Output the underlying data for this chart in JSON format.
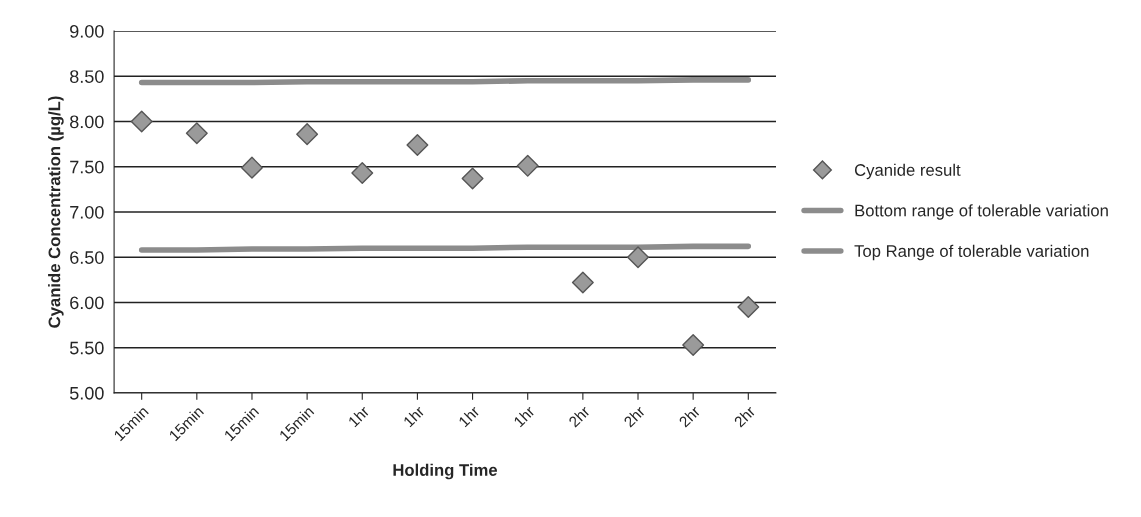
{
  "chart_data": {
    "type": "scatter",
    "xlabel": "Holding Time",
    "ylabel": "Cyanide Concentration (µg/L)",
    "categories": [
      "15min",
      "15min",
      "15min",
      "15min",
      "1hr",
      "1hr",
      "1hr",
      "1hr",
      "2hr",
      "2hr",
      "2hr",
      "2hr"
    ],
    "series": [
      {
        "name": "Cyanide result",
        "color": "#9a9a9a",
        "marker": "diamond",
        "values": [
          8.0,
          7.87,
          7.49,
          7.86,
          7.43,
          7.74,
          7.37,
          7.51,
          6.22,
          6.5,
          5.53,
          5.95
        ]
      },
      {
        "name": "Bottom range of tolerable variation",
        "type": "line",
        "color": "#8c8c8c",
        "marker": "none",
        "values": [
          6.58,
          6.58,
          6.59,
          6.59,
          6.6,
          6.6,
          6.6,
          6.61,
          6.61,
          6.61,
          6.62,
          6.62
        ]
      },
      {
        "name": "Top Range of tolerable variation",
        "type": "line",
        "color": "#8c8c8c",
        "marker": "none",
        "values": [
          8.43,
          8.43,
          8.43,
          8.44,
          8.44,
          8.44,
          8.44,
          8.45,
          8.45,
          8.45,
          8.46,
          8.46
        ]
      }
    ],
    "ylim": [
      5.0,
      9.0
    ],
    "yticks": [
      {
        "value": 5.0,
        "label": "5.00"
      },
      {
        "value": 5.5,
        "label": "5.50"
      },
      {
        "value": 6.0,
        "label": "6.00"
      },
      {
        "value": 6.5,
        "label": "6.50"
      },
      {
        "value": 7.0,
        "label": "7.00"
      },
      {
        "value": 7.5,
        "label": "7.50"
      },
      {
        "value": 8.0,
        "label": "8.00"
      },
      {
        "value": 8.5,
        "label": "8.50"
      },
      {
        "value": 9.0,
        "label": "9.00"
      }
    ],
    "grid": "y",
    "legend": "right"
  }
}
